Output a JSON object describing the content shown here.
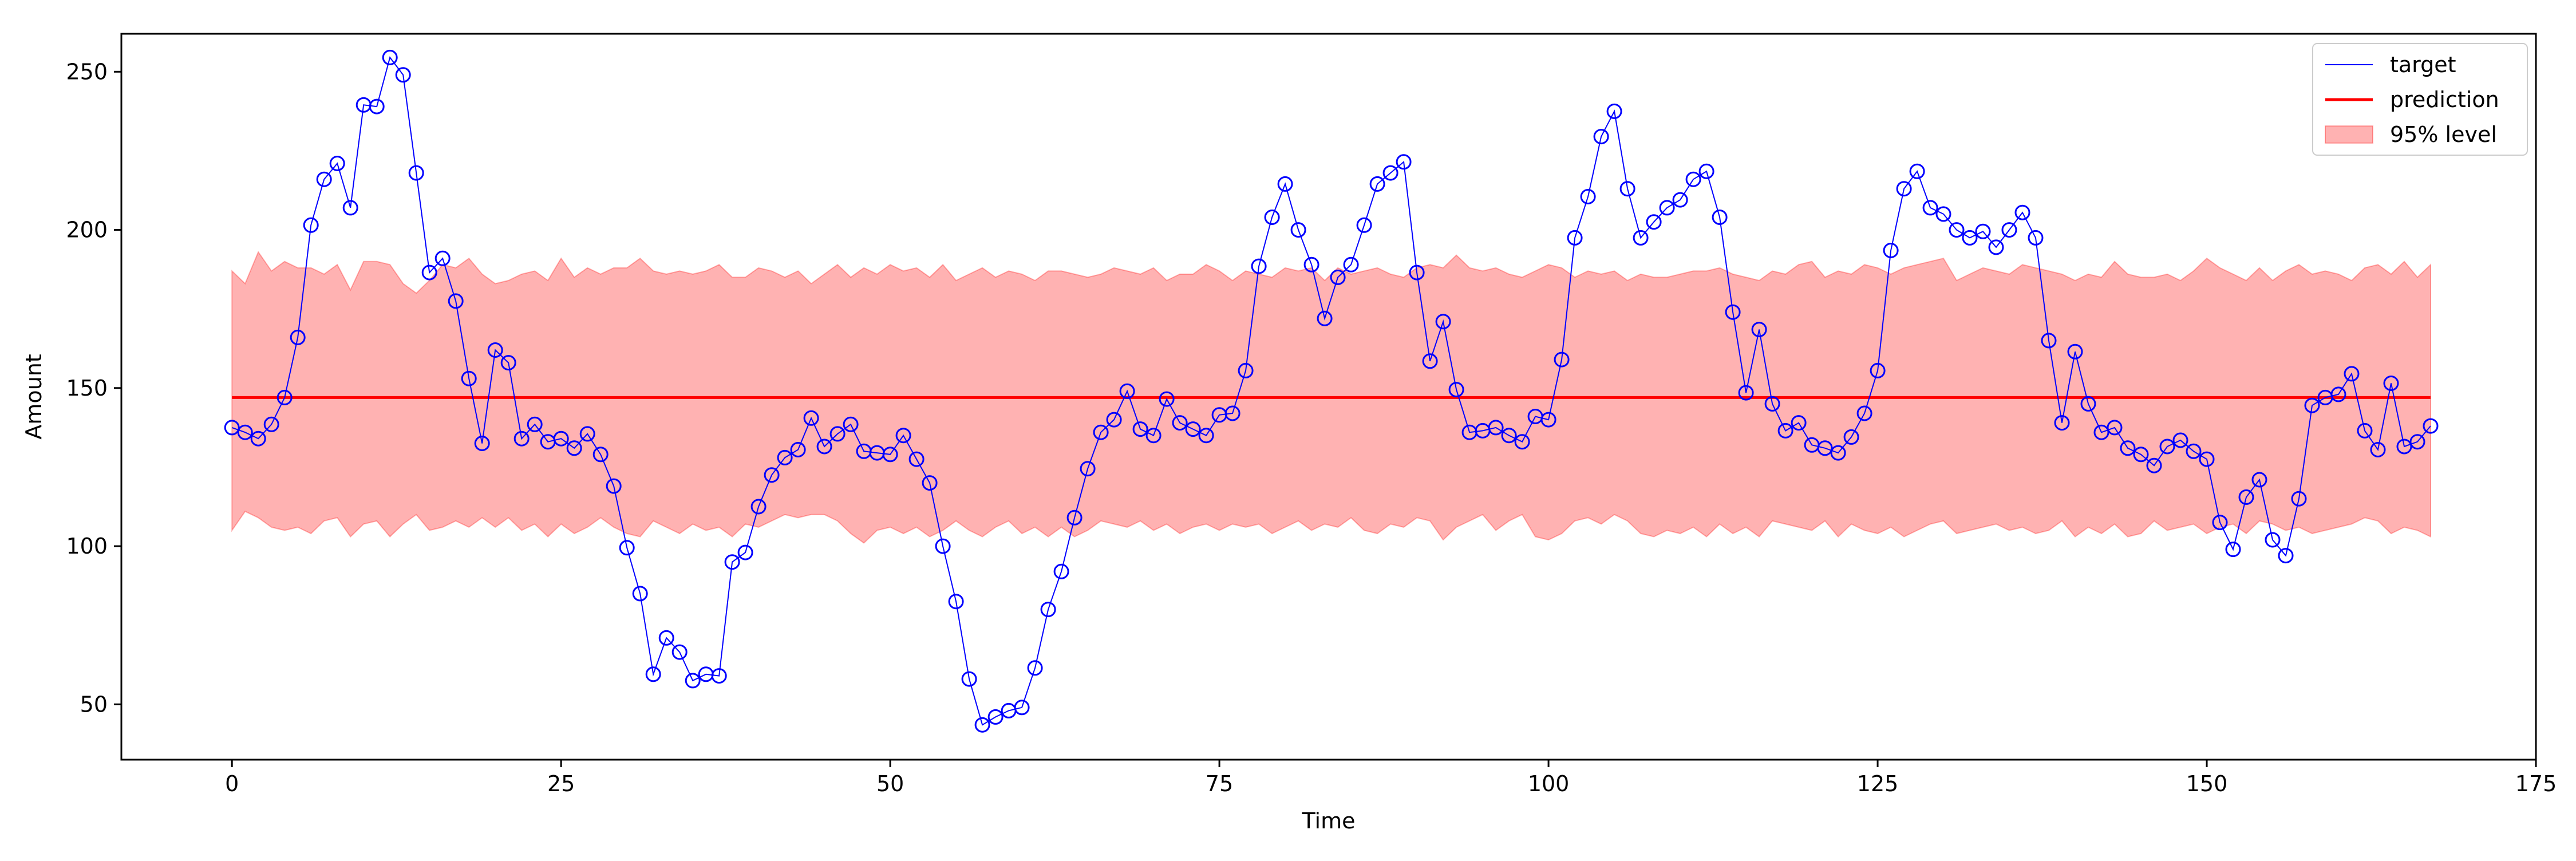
{
  "chart_data": {
    "type": "line",
    "title": "",
    "xlabel": "Time",
    "ylabel": "Amount",
    "xlim": [
      -8.4,
      175
    ],
    "ylim": [
      32.5,
      262
    ],
    "xticks": [
      0,
      25,
      50,
      75,
      100,
      125,
      150,
      175
    ],
    "yticks": [
      50,
      100,
      150,
      200,
      250
    ],
    "grid": false,
    "legend_position": "upper right",
    "colors": {
      "target": "#0000ff",
      "prediction": "#ff0000",
      "band": "#ff0000"
    },
    "legend": [
      "target",
      "prediction",
      "95% level"
    ],
    "prediction": {
      "name": "prediction",
      "x": [
        0,
        167
      ],
      "values": [
        147,
        147
      ]
    },
    "series": [
      {
        "name": "target",
        "x": [
          0,
          1,
          2,
          3,
          4,
          5,
          6,
          7,
          8,
          9,
          10,
          11,
          12,
          13,
          14,
          15,
          16,
          17,
          18,
          19,
          20,
          21,
          22,
          23,
          24,
          25,
          26,
          27,
          28,
          29,
          30,
          31,
          32,
          33,
          34,
          35,
          36,
          37,
          38,
          39,
          40,
          41,
          42,
          43,
          44,
          45,
          46,
          47,
          48,
          49,
          50,
          51,
          52,
          53,
          54,
          55,
          56,
          57,
          58,
          59,
          60,
          61,
          62,
          63,
          64,
          65,
          66,
          67,
          68,
          69,
          70,
          71,
          72,
          73,
          74,
          75,
          76,
          77,
          78,
          79,
          80,
          81,
          82,
          83,
          84,
          85,
          86,
          87,
          88,
          89,
          90,
          91,
          92,
          93,
          94,
          95,
          96,
          97,
          98,
          99,
          100,
          101,
          102,
          103,
          104,
          105,
          106,
          107,
          108,
          109,
          110,
          111,
          112,
          113,
          114,
          115,
          116,
          117,
          118,
          119,
          120,
          121,
          122,
          123,
          124,
          125,
          126,
          127,
          128,
          129,
          130,
          131,
          132,
          133,
          134,
          135,
          136,
          137,
          138,
          139,
          140,
          141,
          142,
          143,
          144,
          145,
          146,
          147,
          148,
          149,
          150,
          151,
          152,
          153,
          154,
          155,
          156,
          157,
          158,
          159,
          160,
          161,
          162,
          163,
          164,
          165,
          166,
          167
        ],
        "values": [
          137.5,
          136,
          134,
          138.5,
          147,
          166,
          201.5,
          216,
          221,
          207,
          239.5,
          239,
          254.5,
          249,
          218,
          186.5,
          191,
          177.5,
          153,
          132.5,
          162,
          158,
          134,
          138.5,
          133,
          134,
          131,
          135.5,
          129,
          119,
          99.5,
          85,
          59.5,
          71,
          66.5,
          57.5,
          59.5,
          59,
          95,
          98,
          112.5,
          122.5,
          128,
          130.5,
          140.5,
          131.5,
          135.5,
          138.5,
          130,
          129.5,
          129,
          135,
          127.5,
          120,
          100,
          82.5,
          58,
          43.5,
          46,
          48,
          49,
          61.5,
          80,
          92,
          109,
          124.5,
          136,
          140,
          149,
          137,
          135,
          146.5,
          139,
          137,
          135,
          141.5,
          142,
          155.5,
          188.5,
          204,
          214.5,
          200,
          189,
          172,
          185,
          189,
          201.5,
          214.5,
          218,
          221.5,
          186.5,
          158.5,
          171,
          149.5,
          136,
          136.5,
          137.5,
          135,
          133,
          141,
          140,
          159,
          197.5,
          210.5,
          229.5,
          237.5,
          213,
          197.5,
          202.5,
          207,
          209.5,
          216,
          218.5,
          204,
          174,
          148.5,
          168.5,
          145,
          136.5,
          139,
          132,
          131,
          129.5,
          134.5,
          142,
          155.5,
          193.5,
          213,
          218.5,
          207,
          205,
          200,
          197.5,
          199.5,
          194.5,
          200,
          205.5,
          197.5,
          165,
          139,
          161.5,
          145,
          136,
          137.5,
          131,
          129,
          125.5,
          131.5,
          133.5,
          130,
          127.5,
          107.5,
          99,
          115.5,
          121,
          102,
          97,
          115,
          144.5,
          147,
          148,
          154.5,
          136.5,
          130.5,
          151.5,
          131.5,
          133,
          138
        ]
      }
    ],
    "band": {
      "name": "95% level",
      "x": [
        0,
        1,
        2,
        3,
        4,
        5,
        6,
        7,
        8,
        9,
        10,
        11,
        12,
        13,
        14,
        15,
        16,
        17,
        18,
        19,
        20,
        21,
        22,
        23,
        24,
        25,
        26,
        27,
        28,
        29,
        30,
        31,
        32,
        33,
        34,
        35,
        36,
        37,
        38,
        39,
        40,
        41,
        42,
        43,
        44,
        45,
        46,
        47,
        48,
        49,
        50,
        51,
        52,
        53,
        54,
        55,
        56,
        57,
        58,
        59,
        60,
        61,
        62,
        63,
        64,
        65,
        66,
        67,
        68,
        69,
        70,
        71,
        72,
        73,
        74,
        75,
        76,
        77,
        78,
        79,
        80,
        81,
        82,
        83,
        84,
        85,
        86,
        87,
        88,
        89,
        90,
        91,
        92,
        93,
        94,
        95,
        96,
        97,
        98,
        99,
        100,
        101,
        102,
        103,
        104,
        105,
        106,
        107,
        108,
        109,
        110,
        111,
        112,
        113,
        114,
        115,
        116,
        117,
        118,
        119,
        120,
        121,
        122,
        123,
        124,
        125,
        126,
        127,
        128,
        129,
        130,
        131,
        132,
        133,
        134,
        135,
        136,
        137,
        138,
        139,
        140,
        141,
        142,
        143,
        144,
        145,
        146,
        147,
        148,
        149,
        150,
        151,
        152,
        153,
        154,
        155,
        156,
        157,
        158,
        159,
        160,
        161,
        162,
        163,
        164,
        165,
        166,
        167
      ],
      "upper": [
        187,
        183,
        193,
        187,
        190,
        188,
        188,
        186,
        189,
        181,
        190,
        190,
        189,
        183,
        180,
        184,
        189,
        188,
        191,
        186,
        183,
        184,
        186,
        187,
        184,
        191,
        185,
        188,
        186,
        188,
        188,
        191,
        187,
        186,
        187,
        186,
        187,
        189,
        185,
        185,
        188,
        187,
        185,
        187,
        183,
        186,
        189,
        185,
        188,
        186,
        189,
        187,
        188,
        185,
        189,
        184,
        186,
        188,
        185,
        187,
        186,
        184,
        187,
        187,
        186,
        185,
        186,
        188,
        187,
        186,
        188,
        184,
        186,
        186,
        189,
        187,
        184,
        187,
        186,
        185,
        188,
        187,
        188,
        184,
        188,
        186,
        187,
        188,
        186,
        185,
        188,
        189,
        188,
        192,
        188,
        187,
        188,
        186,
        185,
        187,
        189,
        188,
        185,
        187,
        186,
        187,
        184,
        186,
        185,
        185,
        186,
        187,
        187,
        188,
        186,
        185,
        184,
        187,
        186,
        189,
        190,
        185,
        187,
        186,
        189,
        188,
        186,
        188,
        189,
        190,
        191,
        184,
        186,
        188,
        187,
        186,
        189,
        188,
        187,
        186,
        184,
        186,
        185,
        190,
        186,
        185,
        185,
        186,
        184,
        187,
        191,
        188,
        186,
        184,
        188,
        184,
        187,
        189,
        186,
        187,
        186,
        184,
        188,
        189,
        186,
        190,
        185,
        189
      ],
      "lower": [
        105,
        111,
        109,
        106,
        105,
        106,
        104,
        108,
        109,
        103,
        107,
        108,
        103,
        107,
        110,
        105,
        106,
        108,
        106,
        109,
        106,
        109,
        105,
        107,
        103,
        107,
        104,
        106,
        109,
        106,
        104,
        103,
        108,
        106,
        104,
        107,
        105,
        106,
        103,
        107,
        106,
        108,
        110,
        109,
        110,
        110,
        108,
        104,
        101,
        105,
        106,
        104,
        106,
        103,
        105,
        108,
        105,
        103,
        106,
        108,
        104,
        106,
        103,
        106,
        103,
        105,
        108,
        107,
        106,
        108,
        105,
        107,
        104,
        106,
        107,
        105,
        107,
        106,
        107,
        104,
        106,
        108,
        105,
        107,
        106,
        109,
        105,
        104,
        107,
        106,
        109,
        108,
        102,
        106,
        108,
        110,
        105,
        108,
        110,
        103,
        102,
        104,
        108,
        109,
        107,
        110,
        108,
        104,
        103,
        105,
        104,
        106,
        103,
        107,
        104,
        106,
        103,
        108,
        107,
        106,
        105,
        108,
        103,
        107,
        105,
        104,
        106,
        103,
        105,
        107,
        108,
        104,
        105,
        106,
        107,
        105,
        106,
        104,
        105,
        108,
        103,
        106,
        104,
        107,
        103,
        104,
        108,
        105,
        106,
        107,
        104,
        106,
        107,
        104,
        108,
        107,
        105,
        106,
        104,
        105,
        106,
        107,
        109,
        108,
        104,
        106,
        105,
        103
      ]
    }
  }
}
